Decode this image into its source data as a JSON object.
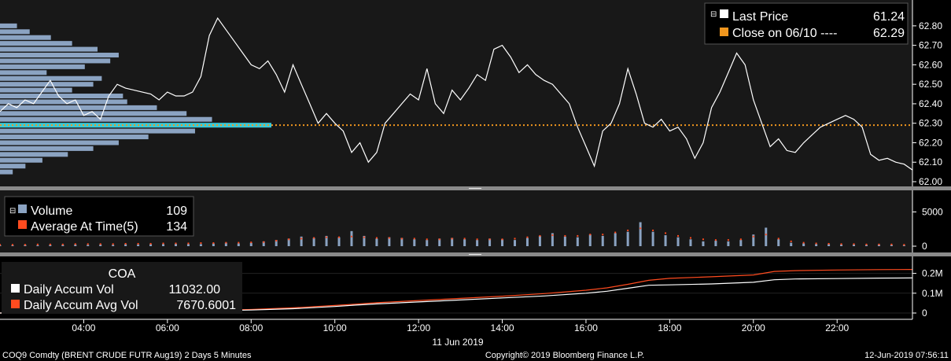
{
  "footer": {
    "left": "COQ9 Comdty (BRENT CRUDE FUTR  Aug19) 2 Days 5 Minutes",
    "center": "Copyright© 2019 Bloomberg Finance L.P.",
    "right": "12-Jun-2019 07:56:11",
    "date_label": "11 Jun 2019"
  },
  "colors": {
    "background": "#000000",
    "panel": "#181818",
    "price_line": "#ffffff",
    "close_line": "#f0961e",
    "profile_bar": "#8ba3c2",
    "profile_highlight": "#39c9d6",
    "volume_bar": "#8ba3c2",
    "avg_dot": "#ff4b1f",
    "accum_avg_line": "#ff4b1f",
    "accum_line": "#ffffff"
  },
  "chart_data": [
    {
      "type": "line",
      "panel": "price",
      "legend": [
        {
          "label": "Last Price",
          "value": "61.24",
          "color": "#ffffff"
        },
        {
          "label": "Close on 06/10 ----",
          "value": "62.29",
          "color": "#f0961e"
        }
      ],
      "xticks": [
        "04:00",
        "06:00",
        "08:00",
        "10:00",
        "12:00",
        "14:00",
        "16:00",
        "18:00",
        "20:00",
        "22:00"
      ],
      "yticks": [
        "62.00",
        "62.10",
        "62.20",
        "62.30",
        "62.40",
        "62.50",
        "62.60",
        "62.70",
        "62.80"
      ],
      "ylim": [
        62.0,
        62.86
      ],
      "xlim": [
        2.0,
        23.8
      ],
      "close_value": 62.29,
      "series": [
        {
          "name": "Last Price",
          "x": [
            2.0,
            2.2,
            2.4,
            2.6,
            2.8,
            3.0,
            3.2,
            3.4,
            3.6,
            3.8,
            4.0,
            4.2,
            4.4,
            4.6,
            4.8,
            5.0,
            5.2,
            5.4,
            5.6,
            5.8,
            6.0,
            6.2,
            6.4,
            6.6,
            6.8,
            7.0,
            7.2,
            7.4,
            7.6,
            7.8,
            8.0,
            8.2,
            8.4,
            8.6,
            8.8,
            9.0,
            9.2,
            9.4,
            9.6,
            9.8,
            10.0,
            10.2,
            10.4,
            10.6,
            10.8,
            11.0,
            11.2,
            11.4,
            11.6,
            11.8,
            12.0,
            12.2,
            12.4,
            12.6,
            12.8,
            13.0,
            13.2,
            13.4,
            13.6,
            13.8,
            14.0,
            14.2,
            14.4,
            14.6,
            14.8,
            15.0,
            15.2,
            15.4,
            15.6,
            15.8,
            16.0,
            16.2,
            16.4,
            16.6,
            16.8,
            17.0,
            17.2,
            17.4,
            17.6,
            17.8,
            18.0,
            18.2,
            18.4,
            18.6,
            18.8,
            19.0,
            19.2,
            19.4,
            19.6,
            19.8,
            20.0,
            20.2,
            20.4,
            20.6,
            20.8,
            21.0,
            21.2,
            21.4,
            21.6,
            21.8,
            22.0,
            22.2,
            22.4,
            22.6,
            22.8,
            23.0,
            23.2,
            23.4,
            23.6,
            23.8
          ],
          "values": [
            62.36,
            62.4,
            62.38,
            62.42,
            62.4,
            62.46,
            62.52,
            62.44,
            62.4,
            62.42,
            62.34,
            62.36,
            62.32,
            62.44,
            62.5,
            62.48,
            62.47,
            62.46,
            62.45,
            62.42,
            62.46,
            62.44,
            62.44,
            62.46,
            62.54,
            62.75,
            62.84,
            62.78,
            62.72,
            62.66,
            62.6,
            62.58,
            62.62,
            62.55,
            62.46,
            62.6,
            62.5,
            62.4,
            62.3,
            62.35,
            62.3,
            62.26,
            62.15,
            62.2,
            62.1,
            62.15,
            62.3,
            62.35,
            62.4,
            62.45,
            62.42,
            62.58,
            62.4,
            62.35,
            62.47,
            62.42,
            62.48,
            62.55,
            62.52,
            62.68,
            62.7,
            62.64,
            62.56,
            62.6,
            62.55,
            62.52,
            62.5,
            62.45,
            62.4,
            62.28,
            62.18,
            62.08,
            62.26,
            62.3,
            62.4,
            62.58,
            62.45,
            62.3,
            62.28,
            62.32,
            62.26,
            62.28,
            62.22,
            62.12,
            62.2,
            62.38,
            62.46,
            62.56,
            62.66,
            62.6,
            62.42,
            62.3,
            62.18,
            62.22,
            62.16,
            62.15,
            62.2,
            62.24,
            62.28,
            62.3,
            62.32,
            62.34,
            62.32,
            62.28,
            62.14,
            62.11,
            62.12,
            62.1,
            62.09,
            62.06
          ]
        }
      ],
      "volume_profile": [
        {
          "price": 62.8,
          "length": 8
        },
        {
          "price": 62.77,
          "length": 14
        },
        {
          "price": 62.74,
          "length": 24
        },
        {
          "price": 62.71,
          "length": 34
        },
        {
          "price": 62.68,
          "length": 46
        },
        {
          "price": 62.65,
          "length": 56
        },
        {
          "price": 62.62,
          "length": 52
        },
        {
          "price": 62.59,
          "length": 40
        },
        {
          "price": 62.56,
          "length": 22
        },
        {
          "price": 62.53,
          "length": 48
        },
        {
          "price": 62.5,
          "length": 44
        },
        {
          "price": 62.47,
          "length": 34
        },
        {
          "price": 62.44,
          "length": 58
        },
        {
          "price": 62.41,
          "length": 60
        },
        {
          "price": 62.38,
          "length": 74
        },
        {
          "price": 62.35,
          "length": 88
        },
        {
          "price": 62.32,
          "length": 100
        },
        {
          "price": 62.29,
          "length": 128
        },
        {
          "price": 62.26,
          "length": 92
        },
        {
          "price": 62.23,
          "length": 70
        },
        {
          "price": 62.2,
          "length": 56
        },
        {
          "price": 62.17,
          "length": 44
        },
        {
          "price": 62.14,
          "length": 32
        },
        {
          "price": 62.11,
          "length": 20
        },
        {
          "price": 62.08,
          "length": 12
        },
        {
          "price": 62.05,
          "length": 6
        }
      ],
      "volume_profile_max_length": 128
    },
    {
      "type": "bar",
      "panel": "volume",
      "legend": [
        {
          "label": "Volume",
          "value": "109",
          "color": "#8ba3c2"
        },
        {
          "label": "Average At Time(5)",
          "value": "134",
          "color": "#ff4b1f"
        }
      ],
      "yticks": [
        "0",
        "5000"
      ],
      "ylim": [
        0,
        7000
      ],
      "xlim": [
        2.0,
        23.8
      ],
      "series": [
        {
          "name": "Volume",
          "x": [
            2.0,
            2.3,
            2.6,
            2.9,
            3.2,
            3.5,
            3.8,
            4.1,
            4.4,
            4.7,
            5.0,
            5.3,
            5.6,
            5.9,
            6.2,
            6.5,
            6.8,
            7.1,
            7.4,
            7.7,
            8.0,
            8.3,
            8.6,
            8.9,
            9.2,
            9.5,
            9.8,
            10.1,
            10.4,
            10.7,
            11.0,
            11.3,
            11.6,
            11.9,
            12.2,
            12.5,
            12.8,
            13.1,
            13.4,
            13.7,
            14.0,
            14.3,
            14.6,
            14.9,
            15.2,
            15.5,
            15.8,
            16.1,
            16.4,
            16.7,
            17.0,
            17.3,
            17.6,
            17.9,
            18.2,
            18.5,
            18.8,
            19.1,
            19.4,
            19.7,
            20.0,
            20.3,
            20.6,
            20.9,
            21.2,
            21.5,
            21.8,
            22.1,
            22.4,
            22.7,
            23.0,
            23.3,
            23.6
          ],
          "values": [
            150,
            150,
            200,
            150,
            200,
            200,
            250,
            200,
            250,
            200,
            300,
            250,
            300,
            300,
            350,
            300,
            300,
            400,
            500,
            400,
            500,
            700,
            900,
            1100,
            1400,
            1200,
            1500,
            1300,
            2200,
            1500,
            1100,
            1300,
            1200,
            1000,
            900,
            1100,
            1200,
            1000,
            900,
            1100,
            1000,
            900,
            1200,
            1500,
            1900,
            1400,
            1300,
            1700,
            1500,
            1900,
            2100,
            3500,
            2100,
            1600,
            1300,
            1000,
            700,
            800,
            700,
            900,
            1700,
            2700,
            1000,
            500,
            400,
            300,
            300,
            250,
            250,
            200,
            250,
            200,
            150
          ]
        },
        {
          "name": "Average At Time(5)",
          "x": [
            2.0,
            2.3,
            2.6,
            2.9,
            3.2,
            3.5,
            3.8,
            4.1,
            4.4,
            4.7,
            5.0,
            5.3,
            5.6,
            5.9,
            6.2,
            6.5,
            6.8,
            7.1,
            7.4,
            7.7,
            8.0,
            8.3,
            8.6,
            8.9,
            9.2,
            9.5,
            9.8,
            10.1,
            10.4,
            10.7,
            11.0,
            11.3,
            11.6,
            11.9,
            12.2,
            12.5,
            12.8,
            13.1,
            13.4,
            13.7,
            14.0,
            14.3,
            14.6,
            14.9,
            15.2,
            15.5,
            15.8,
            16.1,
            16.4,
            16.7,
            17.0,
            17.3,
            17.6,
            17.9,
            18.2,
            18.5,
            18.8,
            19.1,
            19.4,
            19.7,
            20.0,
            20.3,
            20.6,
            20.9,
            21.2,
            21.5,
            21.8,
            22.1,
            22.4,
            22.7,
            23.0,
            23.3,
            23.6
          ],
          "values": [
            200,
            200,
            200,
            250,
            250,
            250,
            300,
            300,
            300,
            300,
            350,
            350,
            350,
            400,
            400,
            400,
            450,
            450,
            500,
            500,
            550,
            600,
            800,
            1000,
            1100,
            1200,
            1300,
            1300,
            1400,
            1300,
            1200,
            1200,
            1100,
            1100,
            1000,
            1000,
            1100,
            1100,
            1000,
            1000,
            1000,
            1100,
            1300,
            1500,
            1600,
            1500,
            1500,
            1700,
            1700,
            2000,
            2300,
            2600,
            2300,
            1900,
            1500,
            1200,
            1000,
            900,
            900,
            1000,
            1400,
            1700,
            1100,
            700,
            500,
            400,
            350,
            300,
            300,
            250,
            250,
            250,
            200
          ]
        }
      ]
    },
    {
      "type": "line",
      "panel": "accumulated",
      "title": "COA",
      "legend": [
        {
          "label": "Daily Accum Vol",
          "value": "11032.00",
          "color": "#ffffff"
        },
        {
          "label": "Daily Accum Avg Vol",
          "value": "7670.6001",
          "color": "#ff4b1f"
        }
      ],
      "yticks": [
        "0",
        "0.1M",
        "0.2M"
      ],
      "ylim": [
        -20000,
        250000
      ],
      "xlim": [
        2.0,
        23.8
      ],
      "series": [
        {
          "name": "Daily Accum Vol",
          "x": [
            2.0,
            3.0,
            4.0,
            5.0,
            6.0,
            7.0,
            8.0,
            9.0,
            10.0,
            10.5,
            11.0,
            12.0,
            13.0,
            14.0,
            15.0,
            16.0,
            16.5,
            17.0,
            17.5,
            18.0,
            19.0,
            20.0,
            20.5,
            21.0,
            22.0,
            23.0,
            23.8
          ],
          "values": [
            0,
            1500,
            3000,
            5000,
            8000,
            11000,
            15000,
            22000,
            33000,
            40000,
            46000,
            56000,
            66000,
            76000,
            86000,
            100000,
            110000,
            125000,
            140000,
            142000,
            147000,
            155000,
            168000,
            172000,
            174000,
            176000,
            177000
          ]
        },
        {
          "name": "Daily Accum Avg Vol",
          "x": [
            2.0,
            3.0,
            4.0,
            5.0,
            6.0,
            7.0,
            8.0,
            9.0,
            10.0,
            10.5,
            11.0,
            12.0,
            13.0,
            14.0,
            15.0,
            16.0,
            16.5,
            17.0,
            17.5,
            18.0,
            19.0,
            20.0,
            20.5,
            21.0,
            22.0,
            23.0,
            23.8
          ],
          "values": [
            0,
            2000,
            4000,
            6000,
            9000,
            13000,
            18000,
            26000,
            38000,
            45000,
            52000,
            63000,
            74000,
            85000,
            98000,
            115000,
            127000,
            145000,
            165000,
            175000,
            183000,
            192000,
            210000,
            214000,
            217000,
            219000,
            220000
          ]
        }
      ]
    }
  ]
}
